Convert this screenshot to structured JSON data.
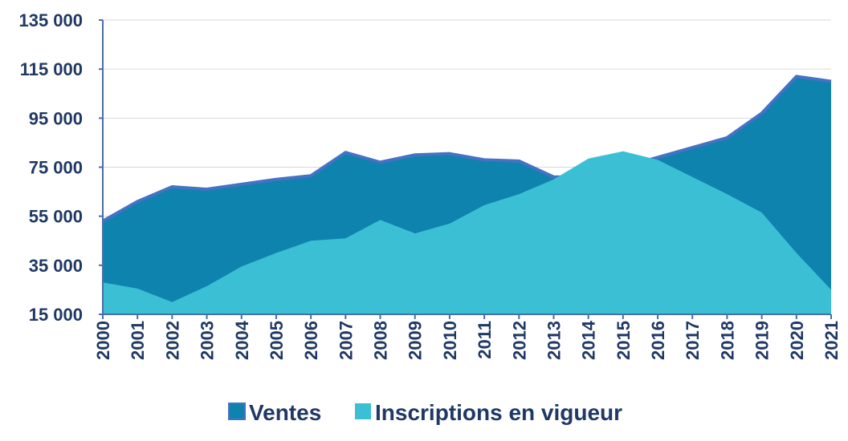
{
  "chart_data": {
    "type": "area",
    "x": [
      "2000",
      "2001",
      "2002",
      "2003",
      "2004",
      "2005",
      "2006",
      "2007",
      "2008",
      "2009",
      "2010",
      "2011",
      "2012",
      "2013",
      "2014",
      "2015",
      "2016",
      "2017",
      "2018",
      "2019",
      "2020",
      "2021"
    ],
    "y_ticks": [
      "15 000",
      "35 000",
      "55 000",
      "75 000",
      "95 000",
      "115 000",
      "135 000"
    ],
    "ylim": [
      15000,
      135000
    ],
    "series": [
      {
        "name": "Ventes",
        "color": "#0e83ad",
        "stroke": "#4472c4",
        "values": [
          53000,
          61000,
          67000,
          66000,
          68000,
          70000,
          71500,
          81000,
          77000,
          80000,
          80500,
          78000,
          77500,
          71000,
          71000,
          75000,
          79000,
          83000,
          87000,
          97000,
          112000,
          110000
        ]
      },
      {
        "name": "Inscriptions en vigueur",
        "color": "#3bbfd5",
        "values": [
          28000,
          25500,
          20000,
          26500,
          34500,
          40000,
          45000,
          46000,
          53500,
          48000,
          52000,
          59500,
          64000,
          70000,
          78500,
          81500,
          78000,
          71000,
          64000,
          56500,
          40000,
          25000
        ]
      }
    ],
    "grid": "horizontal",
    "legend": "bottom"
  }
}
